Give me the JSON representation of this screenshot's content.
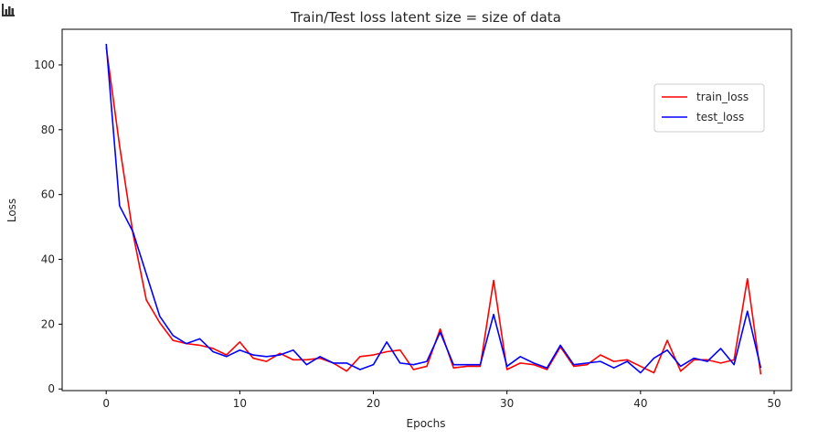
{
  "icons": {
    "corner": "bar-chart-icon"
  },
  "chart_data": {
    "type": "line",
    "title": "Train/Test loss latent size = size of data",
    "xlabel": "Epochs",
    "ylabel": "Loss",
    "xlim": [
      -3.3,
      51.3
    ],
    "ylim": [
      -0.5,
      111
    ],
    "xticks": [
      0,
      10,
      20,
      30,
      40,
      50
    ],
    "yticks": [
      0,
      20,
      40,
      60,
      80,
      100
    ],
    "legend": "upper-right",
    "grid": false,
    "x": [
      0,
      1,
      2,
      3,
      4,
      5,
      6,
      7,
      8,
      9,
      10,
      11,
      12,
      13,
      14,
      15,
      16,
      17,
      18,
      19,
      20,
      21,
      22,
      23,
      24,
      25,
      26,
      27,
      28,
      29,
      30,
      31,
      32,
      33,
      34,
      35,
      36,
      37,
      38,
      39,
      40,
      41,
      42,
      43,
      44,
      45,
      46,
      47,
      48,
      49
    ],
    "series": [
      {
        "name": "train_loss",
        "color": "#ff0000",
        "values": [
          105.5,
          75,
          48,
          27.5,
          20.5,
          15,
          14,
          13.5,
          12.5,
          10.5,
          14.5,
          9.5,
          8.5,
          11,
          9,
          9,
          9.5,
          8,
          5.5,
          10,
          10.5,
          11.5,
          12,
          6,
          7,
          18.5,
          6.5,
          7,
          7,
          33.5,
          6,
          8,
          7.5,
          6,
          13,
          7,
          7.5,
          10.5,
          8.5,
          9,
          7,
          5,
          15,
          5.5,
          9,
          9,
          8,
          9,
          34,
          4.5
        ]
      },
      {
        "name": "test_loss",
        "color": "#0000ff",
        "values": [
          106.5,
          56.5,
          48.5,
          35.5,
          22.5,
          16.5,
          14,
          15.5,
          11.5,
          10,
          12,
          10.5,
          10,
          10.5,
          12,
          7.5,
          10,
          8,
          8,
          6,
          7.5,
          14.5,
          8,
          7.5,
          8.5,
          17.5,
          7.5,
          7.5,
          7.5,
          23,
          7,
          10,
          8,
          6.5,
          13.5,
          7.5,
          8,
          8.5,
          6.5,
          8.5,
          5,
          9.5,
          12,
          7,
          9.5,
          8.5,
          12.5,
          7.5,
          24,
          6.5
        ]
      }
    ]
  }
}
